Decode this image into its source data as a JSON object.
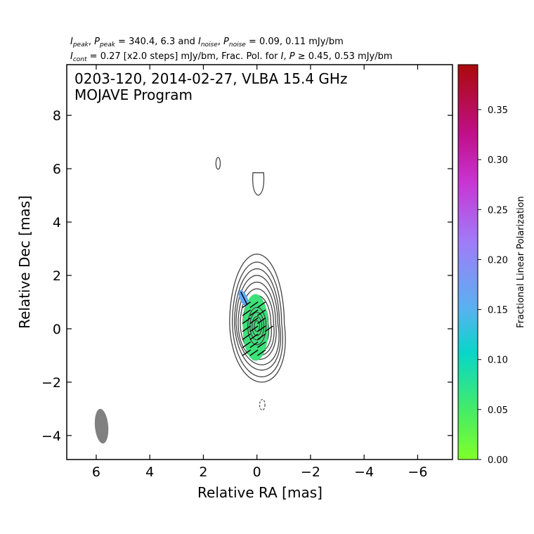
{
  "header": {
    "line1": "I_peak, P_peak = 340.4, 6.3 and I_noise, P_noise = 0.09, 0.11 mJy/bm",
    "line1_parts": {
      "i_sym": "I",
      "peak_sub": "peak",
      "p_sym": "P",
      "values_a": " = 340.4, 6.3 and ",
      "noise_sub": "noise",
      "values_b": " = 0.09, 0.11 mJy/bm"
    },
    "line2": "I_cont = 0.27 [x2.0 steps] mJy/bm, Frac. Pol. for I, P ≥ 0.45, 0.53 mJy/bm",
    "line2_parts": {
      "i_sym": "I",
      "cont_sub": "cont",
      "values_a": " = 0.27 [x2.0 steps] mJy/bm, Frac. Pol. for ",
      "p_sym": "P",
      "values_b": " ≥ 0.45, 0.53 mJy/bm"
    }
  },
  "chart_data": {
    "type": "contour",
    "title": "0203-120, 2014-02-27, VLBA 15.4 GHz",
    "subtitle": "MOJAVE Program",
    "xlabel": "Relative RA [mas]",
    "ylabel": "Relative Dec [mas]",
    "xlim": [
      7.1,
      -7.3
    ],
    "ylim": [
      -4.9,
      9.9
    ],
    "xticks": [
      6,
      4,
      2,
      0,
      -2,
      -4,
      -6
    ],
    "xtick_labels": [
      "6",
      "4",
      "2",
      "0",
      "−2",
      "−4",
      "−6"
    ],
    "yticks": [
      -4,
      -2,
      0,
      2,
      4,
      6,
      8
    ],
    "ytick_labels": [
      "−4",
      "−2",
      "0",
      "2",
      "4",
      "6",
      "8"
    ],
    "stokes_i_contours": {
      "base_mJy_per_beam": 0.27,
      "step_factor": 2.0,
      "core_center": [
        0.0,
        0.0
      ],
      "features": [
        {
          "component": "core",
          "ra": 0.0,
          "dec": 0.2
        },
        {
          "component": "isolated",
          "ra": 1.45,
          "dec": 6.2
        },
        {
          "component": "isolated",
          "ra": -0.05,
          "dec": 5.4
        },
        {
          "component": "negative-contour",
          "ra": -0.2,
          "dec": -2.85
        }
      ]
    },
    "fractional_polarization": {
      "label": "Fractional Linear Polarization",
      "colorbar_range": [
        0.0,
        0.395
      ],
      "colorbar_ticks": [
        0.0,
        0.05,
        0.1,
        0.15,
        0.2,
        0.25,
        0.3,
        0.35
      ],
      "colorbar_tick_labels": [
        "0.00",
        "0.05",
        "0.10",
        "0.15",
        "0.20",
        "0.25",
        "0.30",
        "0.35"
      ],
      "regions": [
        {
          "ra": 0.05,
          "dec": 0.05,
          "frac_pol": 0.04
        },
        {
          "ra": 0.5,
          "dec": 1.15,
          "frac_pol": 0.18
        }
      ]
    },
    "beam": {
      "ra": 5.8,
      "dec": -3.65,
      "major_mas": 1.3,
      "minor_mas": 0.5,
      "pa_deg": -5
    },
    "colors": {
      "contour": "#444444",
      "beam": "#808080",
      "colormap": [
        "#7fff2a",
        "#3ee07a",
        "#07d4cc",
        "#62a8f7",
        "#a36bf7",
        "#c800c8",
        "#b21870",
        "#ad0c0c"
      ]
    }
  }
}
